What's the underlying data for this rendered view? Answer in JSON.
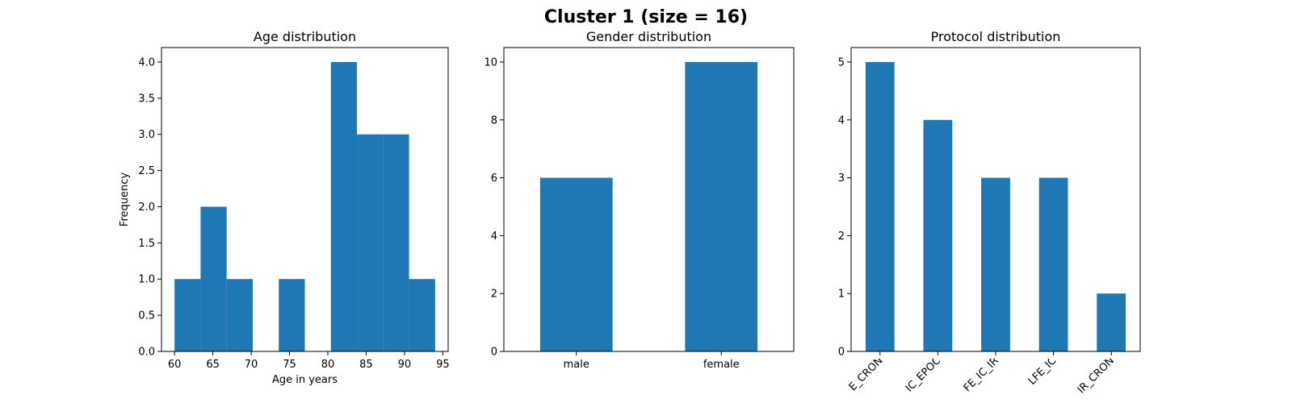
{
  "figure": {
    "title": "Cluster 1 (size = 16)"
  },
  "colors": {
    "bar": "#1f77b4"
  },
  "chart_data": [
    {
      "type": "bar",
      "subtype": "histogram",
      "title": "Age distribution",
      "xlabel": "Age in years",
      "ylabel": "Frequency",
      "xlim": [
        58.3,
        95.7
      ],
      "ylim": [
        0,
        4.2
      ],
      "xticks": [
        60,
        65,
        70,
        75,
        80,
        85,
        90,
        95
      ],
      "yticks": [
        0.0,
        0.5,
        1.0,
        1.5,
        2.0,
        2.5,
        3.0,
        3.5,
        4.0
      ],
      "bins": [
        {
          "x0": 60.0,
          "x1": 63.4,
          "count": 1
        },
        {
          "x0": 63.4,
          "x1": 66.8,
          "count": 2
        },
        {
          "x0": 66.8,
          "x1": 70.2,
          "count": 1
        },
        {
          "x0": 70.2,
          "x1": 73.6,
          "count": 0
        },
        {
          "x0": 73.6,
          "x1": 77.0,
          "count": 1
        },
        {
          "x0": 77.0,
          "x1": 80.4,
          "count": 0
        },
        {
          "x0": 80.4,
          "x1": 83.8,
          "count": 4
        },
        {
          "x0": 83.8,
          "x1": 87.2,
          "count": 3
        },
        {
          "x0": 87.2,
          "x1": 90.6,
          "count": 3
        },
        {
          "x0": 90.6,
          "x1": 94.0,
          "count": 1
        }
      ]
    },
    {
      "type": "bar",
      "title": "Gender distribution",
      "xlabel": "",
      "ylabel": "",
      "ylim": [
        0,
        10.5
      ],
      "yticks": [
        0,
        2,
        4,
        6,
        8,
        10
      ],
      "categories": [
        "male",
        "female"
      ],
      "values": [
        6,
        10
      ]
    },
    {
      "type": "bar",
      "title": "Protocol distribution",
      "xlabel": "",
      "ylabel": "",
      "ylim": [
        0,
        5.25
      ],
      "yticks": [
        0,
        1,
        2,
        3,
        4,
        5
      ],
      "categories": [
        "LFE_CRON",
        "LFE_IC_EPOC",
        "LFE_IC_IR",
        "LFE_IC",
        "LFE_IR_CRON"
      ],
      "category_labels_visible": [
        "E_CRON",
        "IC_EPOC",
        "FE_IC_IR",
        "LFE_IC",
        "IR_CRON"
      ],
      "values": [
        5,
        4,
        3,
        3,
        1
      ]
    }
  ]
}
